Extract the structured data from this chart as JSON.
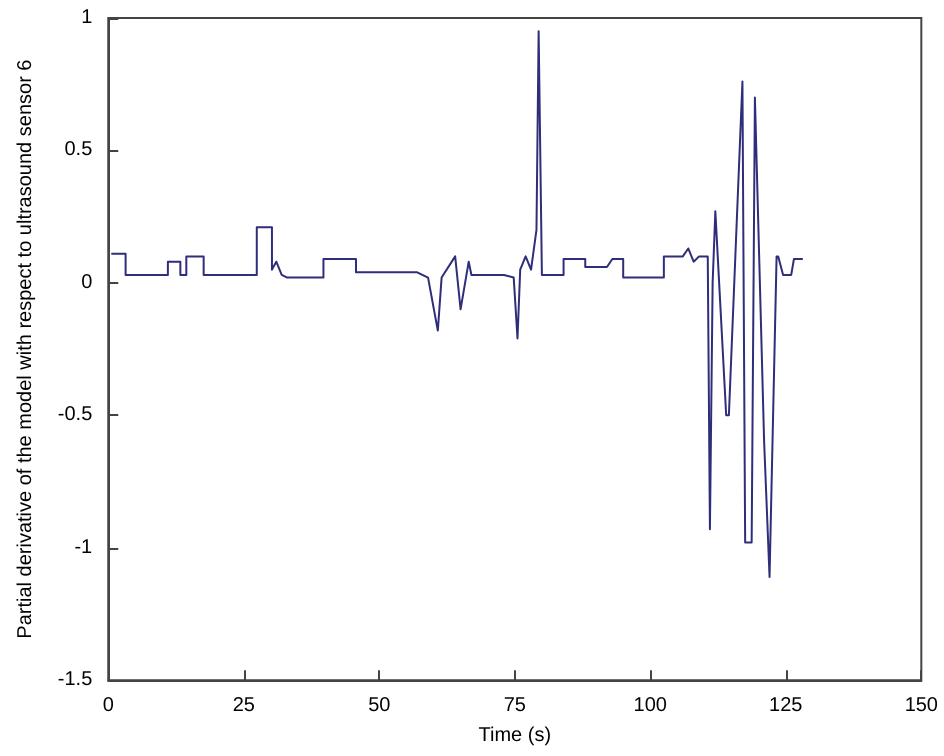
{
  "chart_data": {
    "type": "line",
    "xlabel": "Time (s)",
    "ylabel": "Partial derivative of the model with respect to ultrasound sensor 6",
    "xlim": [
      0,
      150
    ],
    "xticks": [
      0,
      25,
      50,
      75,
      100,
      125,
      150
    ],
    "ylim": [
      -1.5,
      1
    ],
    "yticks": [
      -1.5,
      -1,
      -0.5,
      0,
      0.5,
      1
    ],
    "grid": false,
    "marker": "none",
    "line_style": "solid",
    "series": [
      {
        "color": "#2e2e7a",
        "x": [
          0.7,
          3.2,
          3.2,
          11,
          11,
          13.3,
          13.3,
          14.4,
          14.4,
          17.6,
          17.6,
          27.4,
          27.4,
          30.2,
          30.2,
          31,
          32,
          33,
          39.7,
          39.7,
          41,
          41,
          45.7,
          45.7,
          57,
          59,
          60.8,
          61.5,
          64,
          65,
          66.5,
          67,
          73,
          74.8,
          75.5,
          76,
          77,
          78,
          79,
          79.4,
          80,
          80,
          84,
          84,
          88,
          88,
          92,
          93,
          95,
          95,
          102.5,
          102.5,
          106,
          107,
          108,
          109,
          110.6,
          111,
          111.5,
          112,
          114,
          114.5,
          117,
          117.5,
          118.7,
          119.3,
          121,
          122,
          123.3,
          123.6,
          124.5,
          126,
          126.5,
          128
        ],
        "values": [
          0.11,
          0.11,
          0.03,
          0.03,
          0.08,
          0.08,
          0.03,
          0.03,
          0.1,
          0.1,
          0.03,
          0.03,
          0.21,
          0.21,
          0.05,
          0.08,
          0.03,
          0.02,
          0.02,
          0.09,
          0.09,
          0.09,
          0.09,
          0.04,
          0.04,
          0.02,
          -0.18,
          0.02,
          0.1,
          -0.1,
          0.08,
          0.03,
          0.03,
          0.02,
          -0.21,
          0.05,
          0.1,
          0.05,
          0.2,
          0.95,
          0.03,
          0.03,
          0.03,
          0.09,
          0.09,
          0.06,
          0.06,
          0.09,
          0.09,
          0.02,
          0.02,
          0.1,
          0.1,
          0.13,
          0.08,
          0.1,
          0.1,
          -0.93,
          0,
          0.27,
          -0.5,
          -0.5,
          0.76,
          -0.98,
          -0.98,
          0.7,
          -0.6,
          -1.11,
          0.1,
          0.1,
          0.03,
          0.03,
          0.09,
          0.09
        ]
      }
    ]
  }
}
